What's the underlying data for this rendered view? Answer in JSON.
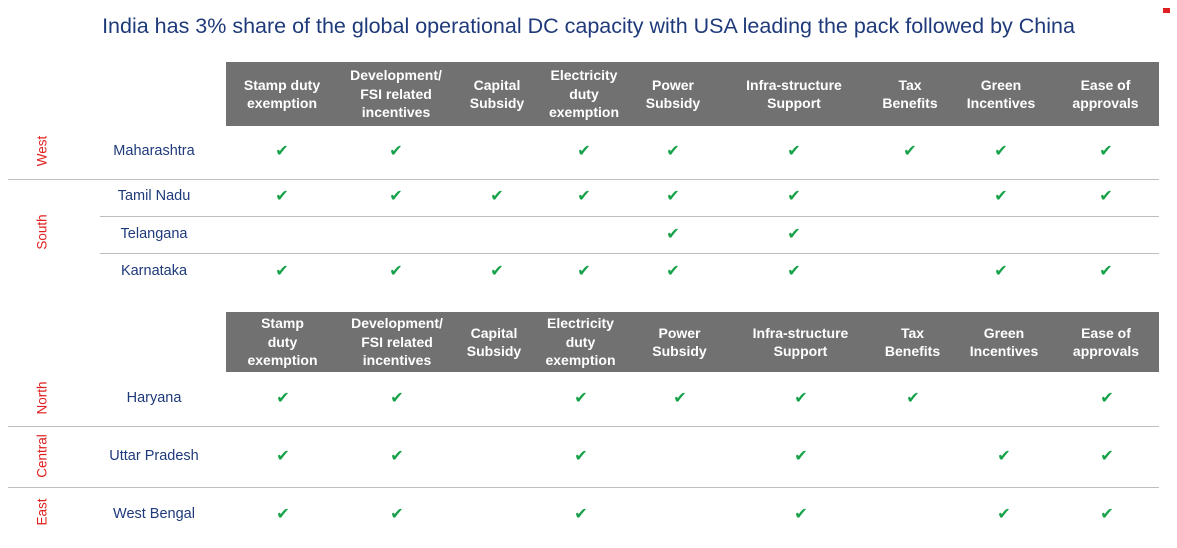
{
  "title": "India has 3% share of the global operational DC capacity with USA leading the pack followed by China",
  "columns_top": [
    "Stamp duty\nexemption",
    "Development/\nFSI related\nincentives",
    "Capital\nSubsidy",
    "Electricity\nduty\nexemption",
    "Power\nSubsidy",
    "Infra-structure\nSupport",
    "Tax\nBenefits",
    "Green\nIncentives",
    "Ease of\napprovals"
  ],
  "columns_bottom": [
    "Stamp\nduty\nexemption",
    "Development/\nFSI related\nincentives",
    "Capital\nSubsidy",
    "Electricity\nduty\nexemption",
    "Power\nSubsidy",
    "Infra-structure\nSupport",
    "Tax\nBenefits",
    "Green\nIncentives",
    "Ease of\napprovals"
  ],
  "check_symbol": "✔",
  "regions": [
    "West",
    "South",
    "North",
    "Central",
    "East"
  ],
  "rows": [
    {
      "state": "Maharashtra",
      "checks": [
        true,
        true,
        false,
        true,
        true,
        true,
        true,
        true,
        true
      ]
    },
    {
      "state": "Tamil Nadu",
      "checks": [
        true,
        true,
        true,
        true,
        true,
        true,
        false,
        true,
        true
      ]
    },
    {
      "state": "Telangana",
      "checks": [
        false,
        false,
        false,
        false,
        true,
        true,
        false,
        false,
        false
      ]
    },
    {
      "state": "Karnataka",
      "checks": [
        true,
        true,
        true,
        true,
        true,
        true,
        false,
        true,
        true
      ]
    },
    {
      "state": "Haryana",
      "checks": [
        true,
        true,
        false,
        true,
        true,
        true,
        true,
        false,
        true
      ]
    },
    {
      "state": "Uttar Pradesh",
      "checks": [
        true,
        true,
        false,
        true,
        false,
        true,
        false,
        true,
        true
      ]
    },
    {
      "state": "West Bengal",
      "checks": [
        true,
        true,
        false,
        true,
        false,
        true,
        false,
        true,
        true
      ]
    }
  ],
  "colors": {
    "title": "#1f3a7a",
    "header_bg": "#717171",
    "check": "#17a24a",
    "region": "#e02020"
  }
}
